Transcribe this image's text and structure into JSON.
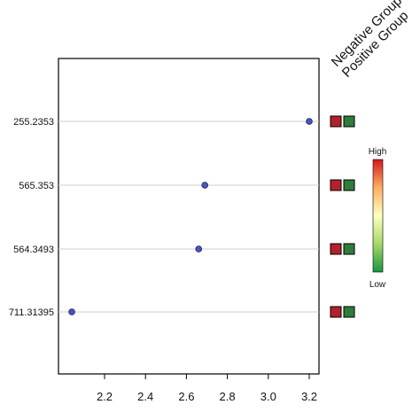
{
  "chart_data": {
    "type": "scatter",
    "x_ticks": [
      "2.2",
      "2.4",
      "2.6",
      "2.8",
      "3.0",
      "3.2"
    ],
    "xlim": [
      2.0,
      3.25
    ],
    "categories": [
      "255.2353",
      "565.353",
      "564.3493",
      "711.31395"
    ],
    "values": [
      3.2,
      2.69,
      2.66,
      2.04
    ],
    "point_color": "#4456c0",
    "groups": [
      "Negative Group",
      "Positive Group"
    ],
    "group_colors": [
      "#b5202a",
      "#2e7d3a"
    ],
    "cell_colors": [
      [
        "#b5202a",
        "#2e7d3a"
      ],
      [
        "#b5202a",
        "#2e7d3a"
      ],
      [
        "#b5202a",
        "#2e7d3a"
      ],
      [
        "#b5202a",
        "#2e7d3a"
      ]
    ],
    "legend": {
      "high_label": "High",
      "low_label": "Low",
      "colors": [
        "#d7191c",
        "#fdae61",
        "#ffffbf",
        "#a6d96a",
        "#1a9641"
      ]
    },
    "grid": "horizontal-per-category"
  }
}
